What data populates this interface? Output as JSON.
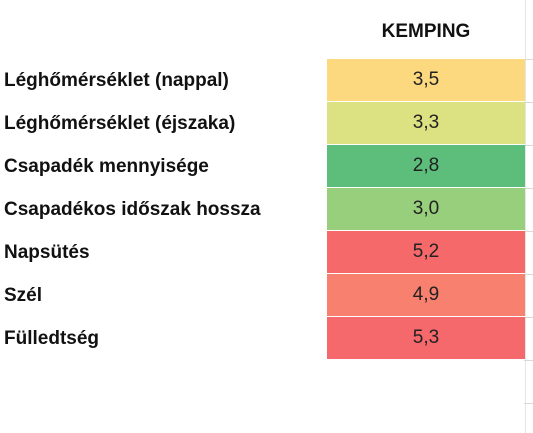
{
  "header": {
    "column_title": "KEMPING"
  },
  "rows": [
    {
      "label": "Léghőmérséklet (nappal)",
      "value": "3,5",
      "color": "#FCD97E"
    },
    {
      "label": "Léghőmérséklet (éjszaka)",
      "value": "3,3",
      "color": "#DCE181"
    },
    {
      "label": "Csapadék mennyisége",
      "value": "2,8",
      "color": "#5DBE7B"
    },
    {
      "label": "Csapadékos időszak hossza",
      "value": "3,0",
      "color": "#98CF7C"
    },
    {
      "label": "Napsütés",
      "value": "5,2",
      "color": "#F5696B"
    },
    {
      "label": "Szél",
      "value": "4,9",
      "color": "#F8806F"
    },
    {
      "label": "Fülledtség",
      "value": "5,3",
      "color": "#F5686B"
    }
  ]
}
